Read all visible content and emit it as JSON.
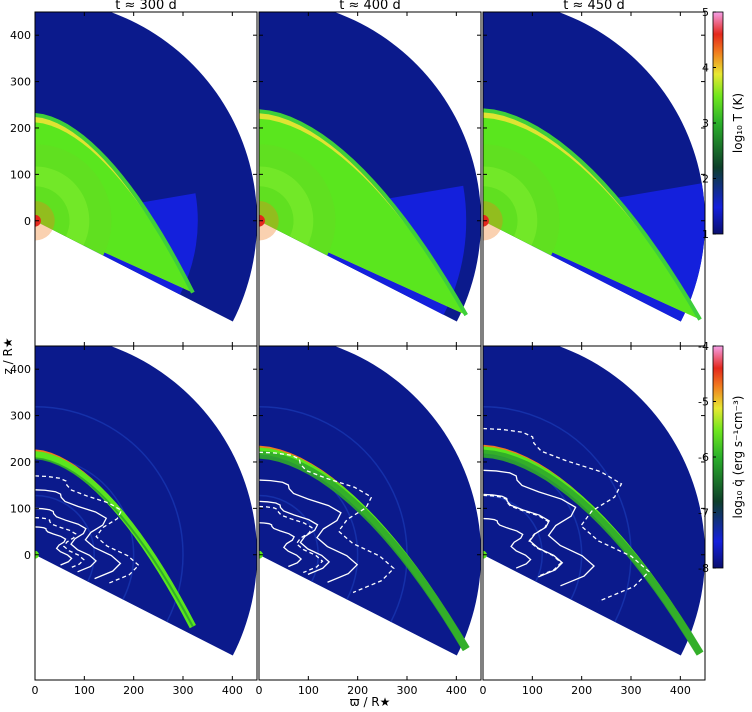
{
  "chart_data": {
    "type": "heatmap",
    "layout": "2 rows x 3 columns, shared axes",
    "column_titles": [
      "t ≈ 300 d",
      "t ≈ 400 d",
      "t ≈ 450 d"
    ],
    "xlabel": "ϖ / R★",
    "ylabel": "z / R★",
    "x_ticks": [
      "0",
      "100",
      "200",
      "300",
      "400"
    ],
    "y_ticks": [
      "0",
      "100",
      "200",
      "300",
      "400"
    ],
    "xlim": [
      0,
      450
    ],
    "ylim": [
      -270,
      450
    ],
    "domain": {
      "outer_radius": 450,
      "angle_min_deg": -27,
      "angle_max_deg": 90
    },
    "rows": [
      {
        "quantity": "log10 T (K)",
        "colorbar_label": "log₁₀ T (K)",
        "colorbar_ticks": [
          "1",
          "2",
          "3",
          "4",
          "5"
        ],
        "colorbar_range": [
          1,
          5
        ],
        "shell_radius_at_pole": [
          220,
          228,
          230
        ]
      },
      {
        "quantity": "log10 q̇ (erg s⁻¹ cm⁻³)",
        "colorbar_label": "log₁₀ q̇ (erg s⁻¹cm⁻³)",
        "colorbar_ticks": [
          "-4",
          "-5",
          "-6",
          "-7",
          "-8"
        ],
        "colorbar_range": [
          -8,
          -4
        ],
        "shell_radius_at_pole": [
          220,
          228,
          230
        ]
      }
    ],
    "colors": {
      "background": "#0b1a8c",
      "blue": "#1420dc",
      "green": "#5ae61e",
      "yellow": "#dfe432",
      "orange": "#f07a1e",
      "red": "#e4281c",
      "magenta": "#f06adc"
    }
  }
}
